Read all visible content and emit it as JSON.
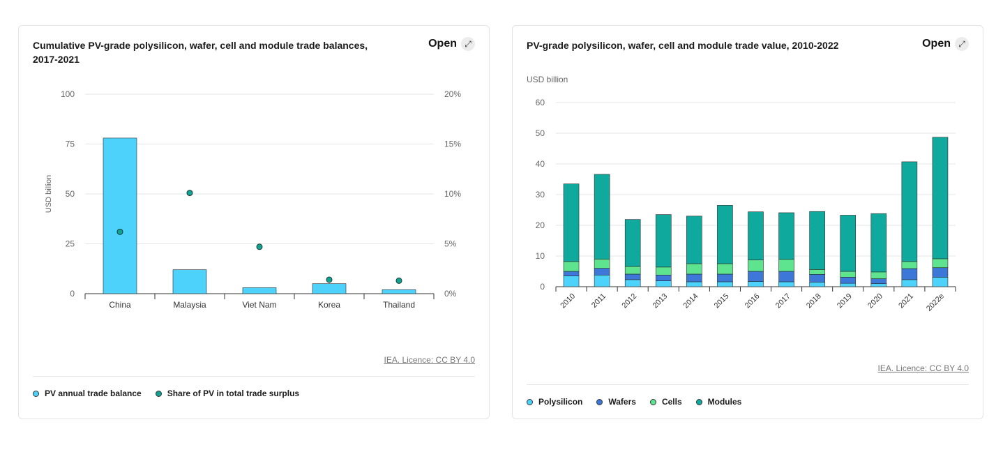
{
  "colors": {
    "balance": "#4dd2fb",
    "share": "#0fa392",
    "polysilicon": "#4dd2fb",
    "wafers": "#3d78d8",
    "cells": "#5ee38f",
    "modules": "#0fa99e"
  },
  "card1": {
    "title": "Cumulative PV-grade polysilicon, wafer, cell and module trade balances, 2017-2021",
    "open_label": "Open",
    "open_icon": "expand-icon",
    "licence": "IEA. Licence: CC BY 4.0",
    "legend": [
      "PV annual trade balance",
      "Share of PV in total trade surplus"
    ]
  },
  "card2": {
    "title": "PV-grade polysilicon, wafer, cell and module trade value, 2010-2022",
    "open_label": "Open",
    "open_icon": "expand-icon",
    "licence": "IEA. Licence: CC BY 4.0",
    "legend": [
      "Polysilicon",
      "Wafers",
      "Cells",
      "Modules"
    ]
  },
  "chart_data": [
    {
      "type": "bar",
      "title": "Cumulative PV-grade polysilicon, wafer, cell and module trade balances, 2017-2021",
      "categories": [
        "China",
        "Malaysia",
        "Viet Nam",
        "Korea",
        "Thailand"
      ],
      "ylabel": "USD billion",
      "ylim": [
        0,
        100
      ],
      "y_ticks": [
        "0",
        "25",
        "50",
        "75",
        "100"
      ],
      "y2lim": [
        0,
        20
      ],
      "y2_ticks": [
        "0%",
        "5%",
        "10%",
        "15%",
        "20%"
      ],
      "series": [
        {
          "name": "PV annual trade balance",
          "kind": "bar",
          "axis": "left",
          "values": [
            78,
            12,
            3,
            5,
            2
          ]
        },
        {
          "name": "Share of PV in total trade surplus",
          "kind": "point",
          "axis": "right",
          "values": [
            6.2,
            10.1,
            4.7,
            1.4,
            1.3
          ]
        }
      ],
      "grid": true,
      "legend": "bottom"
    },
    {
      "type": "bar",
      "stacked": true,
      "title": "PV-grade polysilicon, wafer, cell and module trade value, 2010-2022",
      "categories": [
        "2010",
        "2011",
        "2012",
        "2013",
        "2014",
        "2015",
        "2016",
        "2017",
        "2018",
        "2019",
        "2020",
        "2021",
        "2022e"
      ],
      "ylabel": "USD billion",
      "ylim": [
        0,
        60
      ],
      "y_ticks": [
        "0",
        "10",
        "20",
        "30",
        "40",
        "50",
        "60"
      ],
      "series": [
        {
          "name": "Polysilicon",
          "values": [
            3.5,
            3.8,
            2.3,
            1.9,
            1.6,
            1.6,
            1.7,
            1.6,
            1.5,
            1.1,
            1.0,
            2.3,
            3.1
          ]
        },
        {
          "name": "Wafers",
          "values": [
            1.5,
            2.2,
            1.8,
            1.9,
            2.5,
            2.5,
            3.3,
            3.4,
            2.5,
            2.0,
            1.6,
            3.6,
            3.1
          ]
        },
        {
          "name": "Cells",
          "values": [
            3.2,
            3.0,
            2.5,
            2.6,
            3.4,
            3.4,
            3.7,
            3.9,
            1.6,
            1.9,
            2.2,
            2.3,
            2.9
          ]
        },
        {
          "name": "Modules",
          "values": [
            25.3,
            27.6,
            15.3,
            17.1,
            15.5,
            19.0,
            15.7,
            15.2,
            18.9,
            18.3,
            19.0,
            32.5,
            39.6
          ]
        }
      ],
      "grid": true,
      "legend": "bottom"
    }
  ]
}
